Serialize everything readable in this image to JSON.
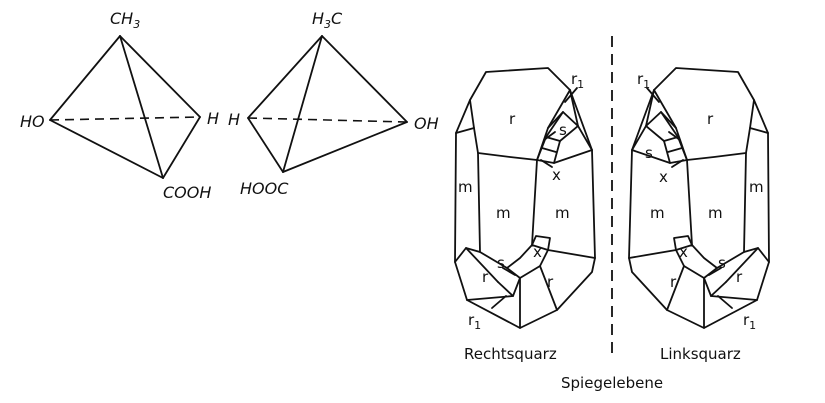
{
  "molecule_left": {
    "top": "CH3",
    "left": "HO",
    "right": "H",
    "bottom": "COOH"
  },
  "molecule_right": {
    "top": "H3C",
    "left": "H",
    "right": "OH",
    "bottom": "HOOC"
  },
  "quartz_right": {
    "caption": "Rechtsquarz",
    "faces": {
      "r_top": "r",
      "r1_top": "r",
      "r1_top_sub": "1",
      "s_top": "s",
      "x_top": "x",
      "m_left": "m",
      "m_center": "m",
      "m_right": "m",
      "s_bottom": "s",
      "x_bottom": "x",
      "r_bottom_left": "r",
      "r_bottom_right": "r",
      "r1_bottom": "r",
      "r1_bottom_sub": "1"
    }
  },
  "quartz_left": {
    "caption": "Linksquarz",
    "faces": {
      "r_top": "r",
      "r1_top": "r",
      "r1_top_sub": "1",
      "s_top": "s",
      "x_top": "x",
      "m_left": "m",
      "m_center": "m",
      "m_right": "m",
      "s_bottom": "s",
      "x_bottom": "x",
      "r_bottom_left": "r",
      "r_bottom_right": "r",
      "r1_bottom": "r",
      "r1_bottom_sub": "1"
    }
  },
  "mirror_label": "Spiegelebene"
}
